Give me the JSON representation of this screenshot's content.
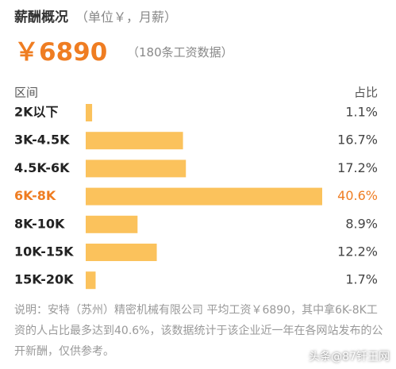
{
  "header": {
    "title": "薪酬概况",
    "subtitle": "（单位￥，月薪）",
    "average": "￥6890",
    "count": "（180条工资数据）"
  },
  "chart_data": {
    "type": "bar",
    "orientation": "horizontal",
    "category_header": "区间",
    "value_header": "占比",
    "categories": [
      "2K以下",
      "3K-4.5K",
      "4.5K-6K",
      "6K-8K",
      "8K-10K",
      "10K-15K",
      "15K-20K"
    ],
    "values": [
      1.1,
      16.7,
      17.2,
      40.6,
      8.9,
      12.2,
      1.7
    ],
    "value_labels": [
      "1.1%",
      "16.7%",
      "17.2%",
      "40.6%",
      "8.9%",
      "12.2%",
      "1.7%"
    ],
    "color": "#fbc25c",
    "label_colors": [
      "#222222",
      "#222222",
      "#222222",
      "#ef7d22",
      "#222222",
      "#222222",
      "#222222"
    ]
  },
  "note": "说明：安特（苏州）精密机械有限公司 平均工资￥6890，其中拿6K-8K工资的人占比最多达到40.6%，该数据统计于该企业近一年在各网站发布的公开新酬，仅供参考。",
  "watermark": "头条@87钎王网"
}
